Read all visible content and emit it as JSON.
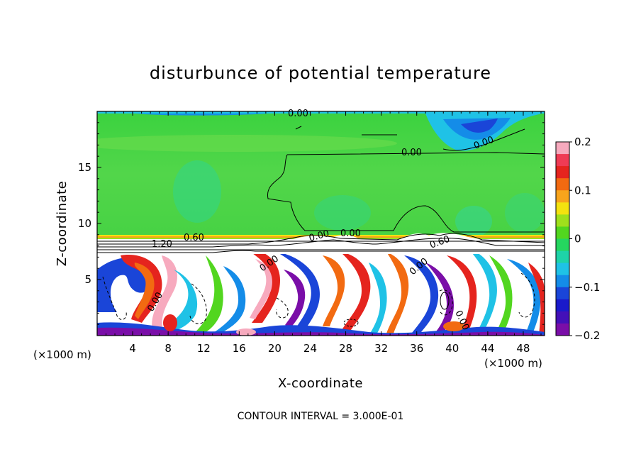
{
  "chart_data": {
    "type": "heatmap",
    "title": "disturbunce of potential temperature",
    "xlabel": "X-coordinate",
    "ylabel": "Z-coordinate",
    "x_unit_left": "(×1000 m)",
    "x_unit_right": "(×1000 m)",
    "xlim": [
      0,
      50.4
    ],
    "ylim": [
      0,
      20
    ],
    "x_ticks": [
      4,
      8,
      12,
      16,
      20,
      24,
      28,
      32,
      36,
      40,
      44,
      48
    ],
    "y_ticks": [
      5,
      10,
      15
    ],
    "colorbar": {
      "range": [
        -0.2,
        0.2
      ],
      "ticks": [
        "0.2",
        "0.1",
        "0",
        "−0.1",
        "−0.2"
      ],
      "colors": [
        "#f7aabe",
        "#ef3b55",
        "#e5241e",
        "#f26a11",
        "#f8a41c",
        "#f4e20f",
        "#9fe01c",
        "#52d61f",
        "#25d65f",
        "#1ed3a8",
        "#1fc2e6",
        "#148ce8",
        "#1a45d8",
        "#1a1acb",
        "#4310b8",
        "#7a0ea8"
      ]
    },
    "contour_labels": [
      "0.00",
      "0.00",
      "0.00",
      "0.00",
      "0.60",
      "1.20",
      "0.00",
      "0.00",
      "0.00",
      "0.00",
      "0.60",
      "0.00",
      "0.00",
      "0.00",
      "0.00"
    ],
    "footnote": "CONTOUR INTERVAL = 3.000E-01"
  }
}
